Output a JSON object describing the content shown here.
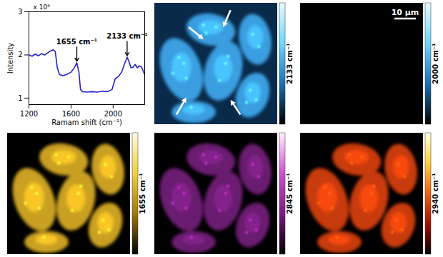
{
  "chart_data": {
    "type": "line",
    "x_label": "Ramam shift (cm⁻¹)",
    "y_label": "Intensity",
    "y_label_multiplier": "x 10⁴",
    "x": [
      1200,
      1230,
      1260,
      1290,
      1320,
      1350,
      1380,
      1410,
      1430,
      1450,
      1470,
      1490,
      1520,
      1560,
      1600,
      1630,
      1655,
      1675,
      1690,
      1710,
      1750,
      1800,
      1850,
      1900,
      1950,
      1990,
      2020,
      2050,
      2080,
      2110,
      2133,
      2150,
      2170,
      2190,
      2210,
      2230,
      2250,
      2270,
      2290,
      2300
    ],
    "values": [
      2.0,
      1.97,
      2.02,
      1.98,
      2.03,
      2.0,
      2.05,
      2.1,
      2.12,
      2.08,
      1.7,
      1.55,
      1.52,
      1.55,
      1.6,
      1.7,
      1.82,
      1.6,
      1.2,
      1.15,
      1.14,
      1.15,
      1.14,
      1.16,
      1.15,
      1.2,
      1.45,
      1.5,
      1.6,
      1.8,
      1.95,
      1.85,
      1.7,
      1.72,
      1.78,
      1.7,
      1.75,
      1.72,
      1.6,
      1.55
    ],
    "color": "#2222cc",
    "xlim": [
      1200,
      2300
    ],
    "xticks": [
      1200,
      1600,
      2000
    ],
    "ylim": [
      0.85,
      3
    ],
    "yticks": [
      1,
      2,
      3
    ],
    "annotations": [
      {
        "text": "1655 cm⁻¹",
        "x": 1655,
        "y": 1.82
      },
      {
        "text": "2133 cm⁻¹",
        "x": 2133,
        "y": 1.95
      }
    ]
  },
  "images": [
    {
      "colorbar_label": "2133 cm⁻¹",
      "background": "#0a2a4a",
      "cell_color": "#3a9ee0",
      "colorbar_colors": [
        "#000000",
        "#1a6fb0",
        "#6fd6ff",
        "#e8fbff"
      ]
    },
    {
      "colorbar_label": "2000 cm⁻¹",
      "background": "#000000",
      "cell_color": "#000000",
      "colorbar_colors": [
        "#000000",
        "#1a6fb0",
        "#6fd6ff",
        "#e8fbff"
      ]
    },
    {
      "colorbar_label": "1655 cm⁻¹",
      "background": "#000000",
      "cell_color": "#c9a020",
      "colorbar_colors": [
        "#000000",
        "#a07810",
        "#f0d040",
        "#fffbe0"
      ]
    },
    {
      "colorbar_label": "2845 cm⁻¹",
      "background": "#000000",
      "cell_color": "#6a1a70",
      "colorbar_colors": [
        "#000000",
        "#7a1a80",
        "#d050d0",
        "#fff0ff"
      ]
    },
    {
      "colorbar_label": "2940 cm⁻¹",
      "background": "#000000",
      "cell_color": "#c83a0a",
      "colorbar_colors": [
        "#000000",
        "#a01000",
        "#f06010",
        "#ffd040",
        "#ffffe0"
      ]
    }
  ],
  "scale_bar": "10 μm"
}
